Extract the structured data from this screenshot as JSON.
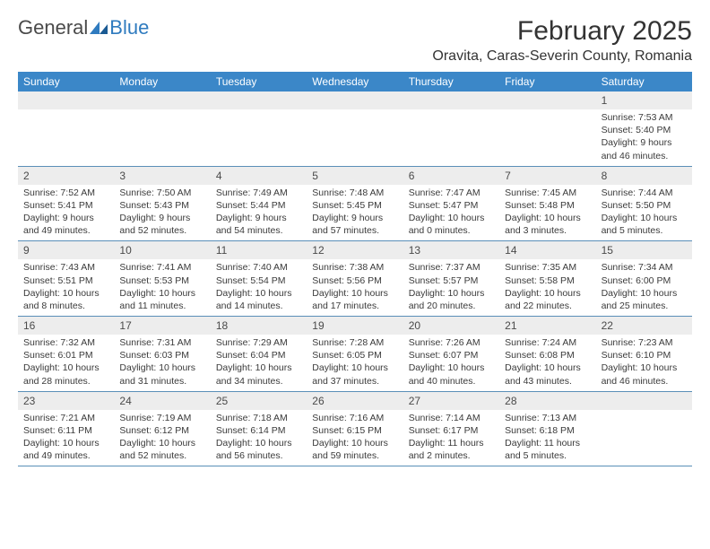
{
  "logo": {
    "word1": "General",
    "word2": "Blue"
  },
  "title": "February 2025",
  "location": "Oravita, Caras-Severin County, Romania",
  "header_bg": "#3b87c8",
  "daynum_bg": "#ededed",
  "week_border": "#5a8fb8",
  "weekdays": [
    "Sunday",
    "Monday",
    "Tuesday",
    "Wednesday",
    "Thursday",
    "Friday",
    "Saturday"
  ],
  "weeks": [
    [
      {
        "n": "",
        "d": ""
      },
      {
        "n": "",
        "d": ""
      },
      {
        "n": "",
        "d": ""
      },
      {
        "n": "",
        "d": ""
      },
      {
        "n": "",
        "d": ""
      },
      {
        "n": "",
        "d": ""
      },
      {
        "n": "1",
        "d": "Sunrise: 7:53 AM\nSunset: 5:40 PM\nDaylight: 9 hours and 46 minutes."
      }
    ],
    [
      {
        "n": "2",
        "d": "Sunrise: 7:52 AM\nSunset: 5:41 PM\nDaylight: 9 hours and 49 minutes."
      },
      {
        "n": "3",
        "d": "Sunrise: 7:50 AM\nSunset: 5:43 PM\nDaylight: 9 hours and 52 minutes."
      },
      {
        "n": "4",
        "d": "Sunrise: 7:49 AM\nSunset: 5:44 PM\nDaylight: 9 hours and 54 minutes."
      },
      {
        "n": "5",
        "d": "Sunrise: 7:48 AM\nSunset: 5:45 PM\nDaylight: 9 hours and 57 minutes."
      },
      {
        "n": "6",
        "d": "Sunrise: 7:47 AM\nSunset: 5:47 PM\nDaylight: 10 hours and 0 minutes."
      },
      {
        "n": "7",
        "d": "Sunrise: 7:45 AM\nSunset: 5:48 PM\nDaylight: 10 hours and 3 minutes."
      },
      {
        "n": "8",
        "d": "Sunrise: 7:44 AM\nSunset: 5:50 PM\nDaylight: 10 hours and 5 minutes."
      }
    ],
    [
      {
        "n": "9",
        "d": "Sunrise: 7:43 AM\nSunset: 5:51 PM\nDaylight: 10 hours and 8 minutes."
      },
      {
        "n": "10",
        "d": "Sunrise: 7:41 AM\nSunset: 5:53 PM\nDaylight: 10 hours and 11 minutes."
      },
      {
        "n": "11",
        "d": "Sunrise: 7:40 AM\nSunset: 5:54 PM\nDaylight: 10 hours and 14 minutes."
      },
      {
        "n": "12",
        "d": "Sunrise: 7:38 AM\nSunset: 5:56 PM\nDaylight: 10 hours and 17 minutes."
      },
      {
        "n": "13",
        "d": "Sunrise: 7:37 AM\nSunset: 5:57 PM\nDaylight: 10 hours and 20 minutes."
      },
      {
        "n": "14",
        "d": "Sunrise: 7:35 AM\nSunset: 5:58 PM\nDaylight: 10 hours and 22 minutes."
      },
      {
        "n": "15",
        "d": "Sunrise: 7:34 AM\nSunset: 6:00 PM\nDaylight: 10 hours and 25 minutes."
      }
    ],
    [
      {
        "n": "16",
        "d": "Sunrise: 7:32 AM\nSunset: 6:01 PM\nDaylight: 10 hours and 28 minutes."
      },
      {
        "n": "17",
        "d": "Sunrise: 7:31 AM\nSunset: 6:03 PM\nDaylight: 10 hours and 31 minutes."
      },
      {
        "n": "18",
        "d": "Sunrise: 7:29 AM\nSunset: 6:04 PM\nDaylight: 10 hours and 34 minutes."
      },
      {
        "n": "19",
        "d": "Sunrise: 7:28 AM\nSunset: 6:05 PM\nDaylight: 10 hours and 37 minutes."
      },
      {
        "n": "20",
        "d": "Sunrise: 7:26 AM\nSunset: 6:07 PM\nDaylight: 10 hours and 40 minutes."
      },
      {
        "n": "21",
        "d": "Sunrise: 7:24 AM\nSunset: 6:08 PM\nDaylight: 10 hours and 43 minutes."
      },
      {
        "n": "22",
        "d": "Sunrise: 7:23 AM\nSunset: 6:10 PM\nDaylight: 10 hours and 46 minutes."
      }
    ],
    [
      {
        "n": "23",
        "d": "Sunrise: 7:21 AM\nSunset: 6:11 PM\nDaylight: 10 hours and 49 minutes."
      },
      {
        "n": "24",
        "d": "Sunrise: 7:19 AM\nSunset: 6:12 PM\nDaylight: 10 hours and 52 minutes."
      },
      {
        "n": "25",
        "d": "Sunrise: 7:18 AM\nSunset: 6:14 PM\nDaylight: 10 hours and 56 minutes."
      },
      {
        "n": "26",
        "d": "Sunrise: 7:16 AM\nSunset: 6:15 PM\nDaylight: 10 hours and 59 minutes."
      },
      {
        "n": "27",
        "d": "Sunrise: 7:14 AM\nSunset: 6:17 PM\nDaylight: 11 hours and 2 minutes."
      },
      {
        "n": "28",
        "d": "Sunrise: 7:13 AM\nSunset: 6:18 PM\nDaylight: 11 hours and 5 minutes."
      },
      {
        "n": "",
        "d": ""
      }
    ]
  ]
}
